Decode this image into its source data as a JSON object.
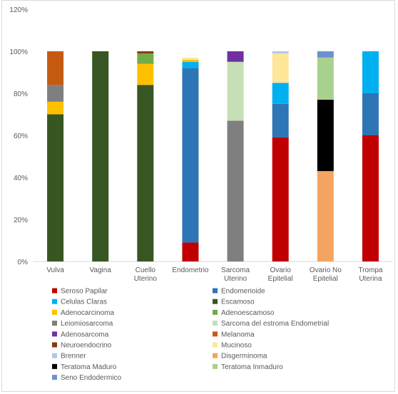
{
  "chart_data": {
    "type": "bar",
    "stacked": true,
    "title": "",
    "xlabel": "",
    "ylabel": "",
    "ylim": [
      0,
      120
    ],
    "y_ticks": [
      0,
      20,
      40,
      60,
      80,
      100,
      120
    ],
    "y_tick_suffix": "%",
    "grid": false,
    "legend_position": "bottom",
    "categories": [
      [
        "Vulva"
      ],
      [
        "Vagina"
      ],
      [
        "Cuello",
        "Uterino"
      ],
      [
        "Endometrio"
      ],
      [
        "Sarcoma",
        "Uterino"
      ],
      [
        "Ovario",
        "Epitelial"
      ],
      [
        "Ovario No",
        "Epitelial"
      ],
      [
        "Trompa",
        "Uterina"
      ]
    ],
    "series": [
      {
        "name": "Seroso Papilar",
        "color": "#c00000",
        "values": [
          0,
          0,
          0,
          9,
          0,
          59,
          0,
          60
        ]
      },
      {
        "name": "Endomerioide",
        "color": "#2e75b6",
        "values": [
          0,
          0,
          0,
          83,
          0,
          16,
          0,
          20
        ]
      },
      {
        "name": "Celulas Claras",
        "color": "#00b0f0",
        "values": [
          0,
          0,
          0,
          3,
          0,
          10,
          0,
          20
        ]
      },
      {
        "name": "Escamoso",
        "color": "#375623",
        "values": [
          70,
          100,
          84,
          0,
          0,
          0,
          0,
          0
        ]
      },
      {
        "name": "Adenocarcinoma",
        "color": "#ffc000",
        "values": [
          6,
          0,
          10,
          1,
          0,
          0,
          0,
          0
        ]
      },
      {
        "name": "Adenoescamoso",
        "color": "#70ad47",
        "values": [
          0,
          0,
          5,
          0,
          0,
          0,
          0,
          0
        ]
      },
      {
        "name": "Leiomiosarcoma",
        "color": "#7f7f7f",
        "values": [
          8,
          0,
          0,
          0,
          67,
          0,
          0,
          0
        ]
      },
      {
        "name": "Sarcoma del estroma Endometrial",
        "color": "#c5e0b4",
        "values": [
          0,
          0,
          0,
          0,
          28,
          0,
          0,
          0
        ]
      },
      {
        "name": "Adenosarcoma",
        "color": "#7030a0",
        "values": [
          0,
          0,
          0,
          0,
          5,
          0,
          0,
          0
        ]
      },
      {
        "name": "Melanoma",
        "color": "#c55a11",
        "values": [
          16,
          0,
          0,
          0,
          0,
          0,
          0,
          0
        ]
      },
      {
        "name": "Neuroendocrino",
        "color": "#843c0c",
        "values": [
          0,
          0,
          1,
          0,
          0,
          0,
          0,
          0
        ]
      },
      {
        "name": "Mucinoso",
        "color": "#ffe699",
        "values": [
          0,
          0,
          0,
          1,
          0,
          14,
          0,
          0
        ]
      },
      {
        "name": "Brenner",
        "color": "#b4c7e7",
        "values": [
          0,
          0,
          0,
          0,
          0,
          1,
          0,
          0
        ]
      },
      {
        "name": "Disgerminoma",
        "color": "#f4a460",
        "values": [
          0,
          0,
          0,
          0,
          0,
          0,
          43,
          0
        ]
      },
      {
        "name": "Teratoma Maduro",
        "color": "#000000",
        "values": [
          0,
          0,
          0,
          0,
          0,
          0,
          34,
          0
        ]
      },
      {
        "name": "Teratoma Inmaduro",
        "color": "#a9d18e",
        "values": [
          0,
          0,
          0,
          0,
          0,
          0,
          20,
          0
        ]
      },
      {
        "name": "Seno Endodermico",
        "color": "#6f8fd0",
        "values": [
          0,
          0,
          0,
          0,
          0,
          0,
          3,
          0
        ]
      }
    ]
  }
}
